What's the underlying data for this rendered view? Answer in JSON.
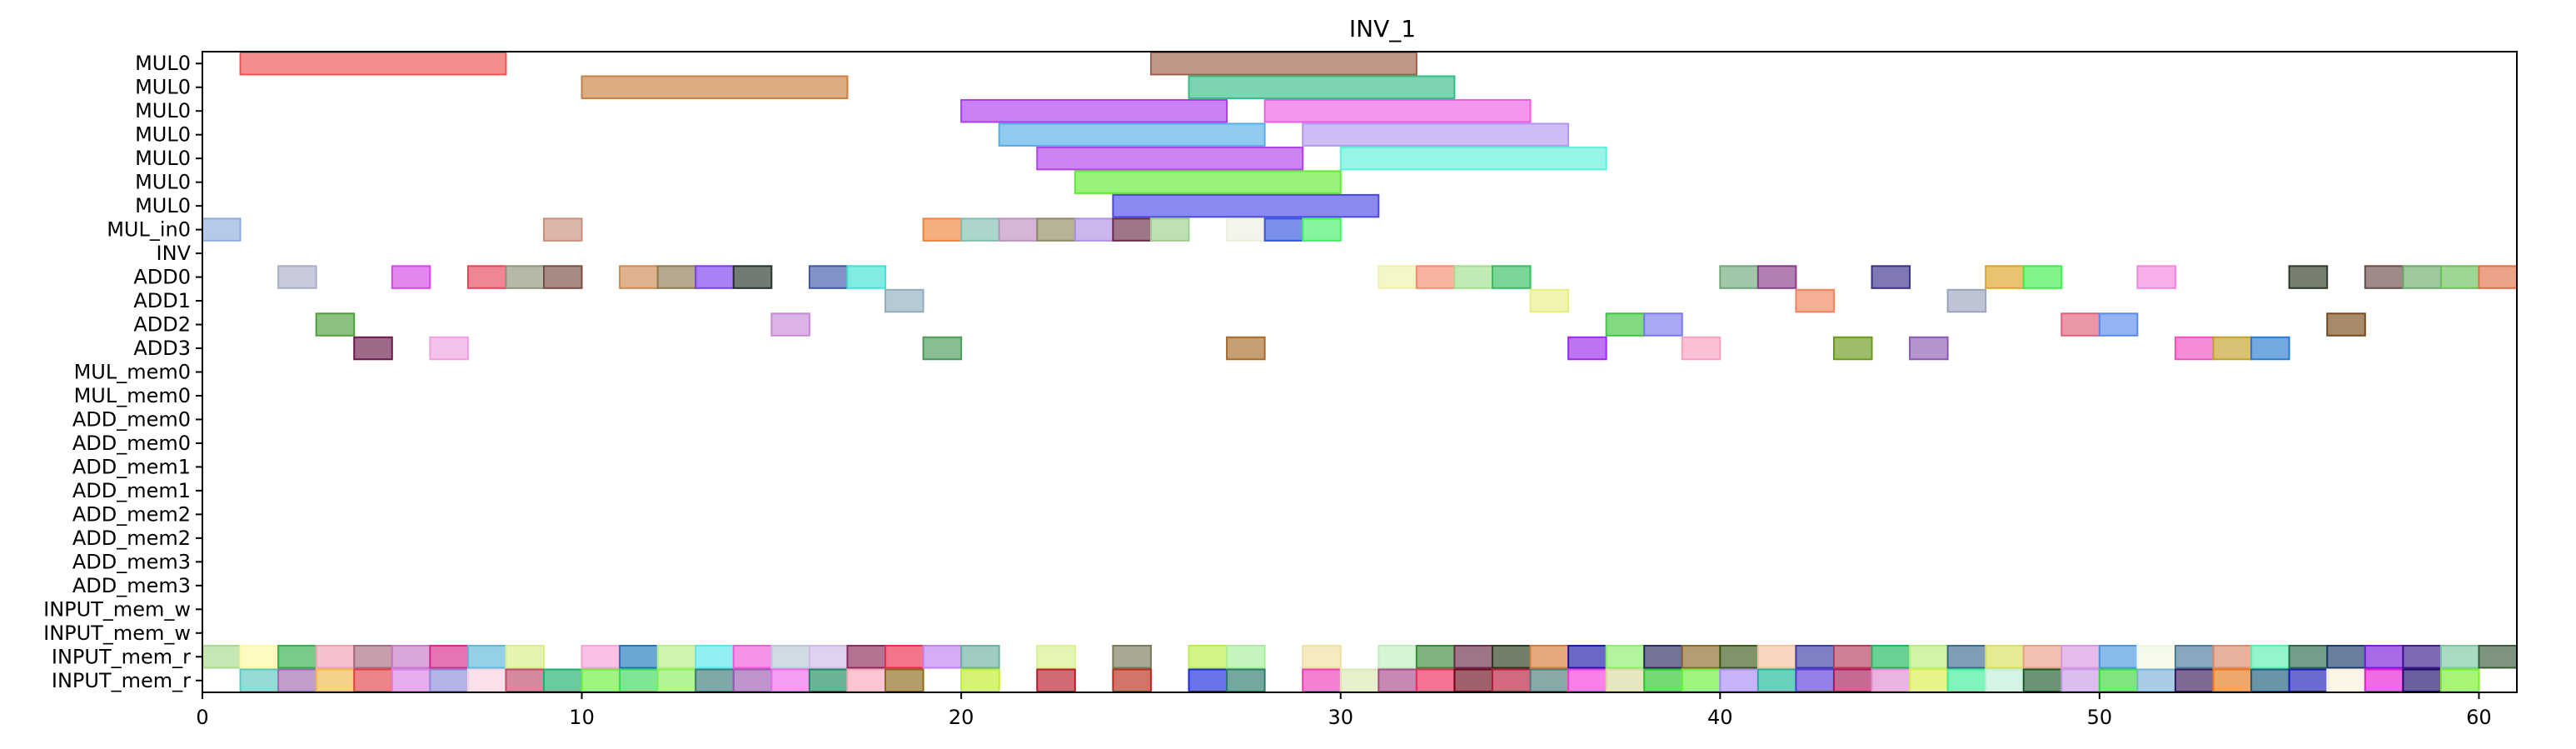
{
  "chart_data": {
    "type": "gantt",
    "title": "INV_1",
    "xlabel": "",
    "ylabel": "",
    "xlim": [
      0,
      61
    ],
    "x_ticks": [
      0,
      10,
      20,
      30,
      40,
      50,
      60
    ],
    "rows": [
      "MUL0",
      "MUL0",
      "MUL0",
      "MUL0",
      "MUL0",
      "MUL0",
      "MUL0",
      "MUL_in0",
      "INV",
      "ADD0",
      "ADD1",
      "ADD2",
      "ADD3",
      "MUL_mem0",
      "MUL_mem0",
      "ADD_mem0",
      "ADD_mem0",
      "ADD_mem1",
      "ADD_mem1",
      "ADD_mem2",
      "ADD_mem2",
      "ADD_mem3",
      "ADD_mem3",
      "INPUT_mem_w",
      "INPUT_mem_w",
      "INPUT_mem_r",
      "INPUT_mem_r"
    ],
    "tasks": [
      {
        "row": 0,
        "start": 1,
        "end": 8,
        "color": "#ec5151"
      },
      {
        "row": 0,
        "start": 25,
        "end": 32,
        "color": "#a0604b"
      },
      {
        "row": 1,
        "start": 10,
        "end": 17,
        "color": "#c9813f"
      },
      {
        "row": 1,
        "start": 26,
        "end": 33,
        "color": "#35bd88"
      },
      {
        "row": 2,
        "start": 20,
        "end": 27,
        "color": "#ad3ded"
      },
      {
        "row": 2,
        "start": 28,
        "end": 35,
        "color": "#ec5de2"
      },
      {
        "row": 3,
        "start": 21,
        "end": 28,
        "color": "#55aee5"
      },
      {
        "row": 3,
        "start": 29,
        "end": 36,
        "color": "#b498ef"
      },
      {
        "row": 4,
        "start": 22,
        "end": 29,
        "color": "#b142e8"
      },
      {
        "row": 4,
        "start": 30,
        "end": 37,
        "color": "#5ff0d9"
      },
      {
        "row": 5,
        "start": 23,
        "end": 30,
        "color": "#62eb33"
      },
      {
        "row": 6,
        "start": 24,
        "end": 31,
        "color": "#4a4ae6"
      },
      {
        "row": 7,
        "start": 0,
        "end": 1,
        "color": "#8eaedd"
      },
      {
        "row": 7,
        "start": 9,
        "end": 10,
        "color": "#c98f7c"
      },
      {
        "row": 7,
        "start": 19,
        "end": 20,
        "color": "#f0843b"
      },
      {
        "row": 7,
        "start": 20,
        "end": 21,
        "color": "#7fbfb0"
      },
      {
        "row": 7,
        "start": 21,
        "end": 22,
        "color": "#bf8fc0"
      },
      {
        "row": 7,
        "start": 22,
        "end": 23,
        "color": "#8f8a60"
      },
      {
        "row": 7,
        "start": 23,
        "end": 24,
        "color": "#b08fe3"
      },
      {
        "row": 7,
        "start": 24,
        "end": 25,
        "color": "#6b2a4a"
      },
      {
        "row": 7,
        "start": 25,
        "end": 26,
        "color": "#9fce8e"
      },
      {
        "row": 7,
        "start": 27,
        "end": 28,
        "color": "#eeeede"
      },
      {
        "row": 7,
        "start": 28,
        "end": 29,
        "color": "#3355dd"
      },
      {
        "row": 7,
        "start": 29,
        "end": 30,
        "color": "#44ee66"
      },
      {
        "row": 9,
        "start": 2,
        "end": 3,
        "color": "#a8adc8"
      },
      {
        "row": 9,
        "start": 5,
        "end": 6,
        "color": "#d545e8"
      },
      {
        "row": 9,
        "start": 7,
        "end": 8,
        "color": "#e8435a"
      },
      {
        "row": 9,
        "start": 8,
        "end": 9,
        "color": "#8e9478"
      },
      {
        "row": 9,
        "start": 9,
        "end": 10,
        "color": "#7a4c42"
      },
      {
        "row": 9,
        "start": 11,
        "end": 12,
        "color": "#cc8a52"
      },
      {
        "row": 9,
        "start": 12,
        "end": 13,
        "color": "#8f7a52"
      },
      {
        "row": 9,
        "start": 13,
        "end": 14,
        "color": "#7a3ef0"
      },
      {
        "row": 9,
        "start": 14,
        "end": 15,
        "color": "#27322a"
      },
      {
        "row": 9,
        "start": 16,
        "end": 17,
        "color": "#4058a8"
      },
      {
        "row": 9,
        "start": 17,
        "end": 18,
        "color": "#3ee4d3"
      },
      {
        "row": 9,
        "start": 31,
        "end": 32,
        "color": "#f0f2aa"
      },
      {
        "row": 9,
        "start": 32,
        "end": 33,
        "color": "#f78a6f"
      },
      {
        "row": 9,
        "start": 33,
        "end": 34,
        "color": "#a0e08e"
      },
      {
        "row": 9,
        "start": 34,
        "end": 35,
        "color": "#35be62"
      },
      {
        "row": 9,
        "start": 40,
        "end": 41,
        "color": "#6fa87a"
      },
      {
        "row": 9,
        "start": 41,
        "end": 42,
        "color": "#8b3a8a"
      },
      {
        "row": 9,
        "start": 44,
        "end": 45,
        "color": "#3a2f8a"
      },
      {
        "row": 9,
        "start": 47,
        "end": 48,
        "color": "#dba527"
      },
      {
        "row": 9,
        "start": 48,
        "end": 49,
        "color": "#3fee4a"
      },
      {
        "row": 9,
        "start": 51,
        "end": 52,
        "color": "#f285e0"
      },
      {
        "row": 9,
        "start": 55,
        "end": 56,
        "color": "#2c3a24"
      },
      {
        "row": 9,
        "start": 57,
        "end": 58,
        "color": "#6a4c4a"
      },
      {
        "row": 9,
        "start": 58,
        "end": 59,
        "color": "#6aaa6a"
      },
      {
        "row": 9,
        "start": 59,
        "end": 60,
        "color": "#6ac05a"
      },
      {
        "row": 9,
        "start": 60,
        "end": 61,
        "color": "#e0704a"
      },
      {
        "row": 10,
        "start": 18,
        "end": 19,
        "color": "#8fadbe"
      },
      {
        "row": 10,
        "start": 35,
        "end": 36,
        "color": "#e8ee80"
      },
      {
        "row": 10,
        "start": 42,
        "end": 43,
        "color": "#f5825a"
      },
      {
        "row": 10,
        "start": 46,
        "end": 47,
        "color": "#9aa5bd"
      },
      {
        "row": 11,
        "start": 3,
        "end": 4,
        "color": "#4f9f3a"
      },
      {
        "row": 11,
        "start": 15,
        "end": 16,
        "color": "#c88ad8"
      },
      {
        "row": 11,
        "start": 37,
        "end": 38,
        "color": "#3ec63e"
      },
      {
        "row": 11,
        "start": 38,
        "end": 39,
        "color": "#7a7aee"
      },
      {
        "row": 11,
        "start": 49,
        "end": 50,
        "color": "#e0607a"
      },
      {
        "row": 11,
        "start": 50,
        "end": 51,
        "color": "#5a8aee"
      },
      {
        "row": 11,
        "start": 56,
        "end": 57,
        "color": "#7a4a1a"
      },
      {
        "row": 12,
        "start": 4,
        "end": 5,
        "color": "#6a1a4a"
      },
      {
        "row": 12,
        "start": 6,
        "end": 7,
        "color": "#eea0e0"
      },
      {
        "row": 12,
        "start": 19,
        "end": 20,
        "color": "#4a9a5a"
      },
      {
        "row": 12,
        "start": 27,
        "end": 28,
        "color": "#a86a2a"
      },
      {
        "row": 12,
        "start": 36,
        "end": 37,
        "color": "#9a2aee"
      },
      {
        "row": 12,
        "start": 39,
        "end": 40,
        "color": "#f8a0c0"
      },
      {
        "row": 12,
        "start": 43,
        "end": 44,
        "color": "#6a9a1a"
      },
      {
        "row": 12,
        "start": 45,
        "end": 46,
        "color": "#8a5ab0"
      },
      {
        "row": 12,
        "start": 52,
        "end": 53,
        "color": "#f050c0"
      },
      {
        "row": 12,
        "start": 53,
        "end": 54,
        "color": "#c0a02a"
      },
      {
        "row": 12,
        "start": 54,
        "end": 55,
        "color": "#2a7ad0"
      },
      {
        "row": 25,
        "start": 0,
        "end": 1,
        "color": "#a8d88a"
      },
      {
        "row": 25,
        "start": 1,
        "end": 2,
        "color": "#fff8a0"
      },
      {
        "row": 25,
        "start": 2,
        "end": 3,
        "color": "#2eb04a"
      },
      {
        "row": 25,
        "start": 3,
        "end": 4,
        "color": "#f0a0b0"
      },
      {
        "row": 25,
        "start": 4,
        "end": 5,
        "color": "#a86a80"
      },
      {
        "row": 25,
        "start": 5,
        "end": 6,
        "color": "#c878c8"
      },
      {
        "row": 25,
        "start": 6,
        "end": 7,
        "color": "#d82a8a"
      },
      {
        "row": 25,
        "start": 7,
        "end": 8,
        "color": "#5ab8d8"
      },
      {
        "row": 25,
        "start": 8,
        "end": 9,
        "color": "#d8ee88"
      },
      {
        "row": 25,
        "start": 10,
        "end": 11,
        "color": "#f8a0d8"
      },
      {
        "row": 25,
        "start": 11,
        "end": 12,
        "color": "#1a78b8"
      },
      {
        "row": 25,
        "start": 12,
        "end": 13,
        "color": "#b8ee8a"
      },
      {
        "row": 25,
        "start": 13,
        "end": 14,
        "color": "#5ae8e8"
      },
      {
        "row": 25,
        "start": 14,
        "end": 15,
        "color": "#f05ad8"
      },
      {
        "row": 25,
        "start": 15,
        "end": 16,
        "color": "#b8c8d8"
      },
      {
        "row": 25,
        "start": 16,
        "end": 17,
        "color": "#d0b8e8"
      },
      {
        "row": 25,
        "start": 17,
        "end": 18,
        "color": "#8a2a5a"
      },
      {
        "row": 25,
        "start": 18,
        "end": 19,
        "color": "#ee2a4a"
      },
      {
        "row": 25,
        "start": 19,
        "end": 20,
        "color": "#c080f0"
      },
      {
        "row": 25,
        "start": 20,
        "end": 21,
        "color": "#6ab0a0"
      },
      {
        "row": 25,
        "start": 22,
        "end": 23,
        "color": "#d8f08a"
      },
      {
        "row": 25,
        "start": 24,
        "end": 25,
        "color": "#7a7a5a"
      },
      {
        "row": 25,
        "start": 26,
        "end": 27,
        "color": "#b8ee4a"
      },
      {
        "row": 25,
        "start": 27,
        "end": 28,
        "color": "#a8ee9a"
      },
      {
        "row": 25,
        "start": 29,
        "end": 30,
        "color": "#eee0a0"
      },
      {
        "row": 25,
        "start": 31,
        "end": 32,
        "color": "#c0eec0"
      },
      {
        "row": 25,
        "start": 32,
        "end": 33,
        "color": "#3a8a3a"
      },
      {
        "row": 25,
        "start": 33,
        "end": 34,
        "color": "#6a2a4a"
      },
      {
        "row": 25,
        "start": 34,
        "end": 35,
        "color": "#2a3a1a"
      },
      {
        "row": 25,
        "start": 35,
        "end": 36,
        "color": "#d87a3a"
      },
      {
        "row": 25,
        "start": 36,
        "end": 37,
        "color": "#1a1aa8"
      },
      {
        "row": 25,
        "start": 37,
        "end": 38,
        "color": "#8aee6a"
      },
      {
        "row": 25,
        "start": 38,
        "end": 39,
        "color": "#2a2a5a"
      },
      {
        "row": 25,
        "start": 39,
        "end": 40,
        "color": "#8a6a2a"
      },
      {
        "row": 25,
        "start": 40,
        "end": 41,
        "color": "#3a5a1a"
      },
      {
        "row": 25,
        "start": 41,
        "end": 42,
        "color": "#f8c0a0"
      },
      {
        "row": 25,
        "start": 42,
        "end": 43,
        "color": "#3a3aa8"
      },
      {
        "row": 25,
        "start": 43,
        "end": 44,
        "color": "#b83a5a"
      },
      {
        "row": 25,
        "start": 44,
        "end": 45,
        "color": "#1ab85a"
      },
      {
        "row": 25,
        "start": 45,
        "end": 46,
        "color": "#b8ee7a"
      },
      {
        "row": 25,
        "start": 46,
        "end": 47,
        "color": "#3a6a8a"
      },
      {
        "row": 25,
        "start": 47,
        "end": 48,
        "color": "#d8e05a"
      },
      {
        "row": 25,
        "start": 48,
        "end": 49,
        "color": "#e8a08a"
      },
      {
        "row": 25,
        "start": 49,
        "end": 50,
        "color": "#d898e0"
      },
      {
        "row": 25,
        "start": 50,
        "end": 51,
        "color": "#4a98e0"
      },
      {
        "row": 25,
        "start": 51,
        "end": 52,
        "color": "#f0f8e0"
      },
      {
        "row": 25,
        "start": 52,
        "end": 53,
        "color": "#4a7a9a"
      },
      {
        "row": 25,
        "start": 53,
        "end": 54,
        "color": "#d88a6a"
      },
      {
        "row": 25,
        "start": 54,
        "end": 55,
        "color": "#5af0b0"
      },
      {
        "row": 25,
        "start": 55,
        "end": 56,
        "color": "#2a6a4a"
      },
      {
        "row": 25,
        "start": 56,
        "end": 57,
        "color": "#1a3a6a"
      },
      {
        "row": 25,
        "start": 57,
        "end": 58,
        "color": "#7a1ad8"
      },
      {
        "row": 25,
        "start": 58,
        "end": 59,
        "color": "#3a1a8a"
      },
      {
        "row": 25,
        "start": 59,
        "end": 60,
        "color": "#7ac8a0"
      },
      {
        "row": 25,
        "start": 60,
        "end": 61,
        "color": "#3a5a3a"
      },
      {
        "row": 26,
        "start": 0,
        "end": 1,
        "color": "#ffffff"
      },
      {
        "row": 26,
        "start": 1,
        "end": 2,
        "color": "#5ac8c0"
      },
      {
        "row": 26,
        "start": 2,
        "end": 3,
        "color": "#a06ab0"
      },
      {
        "row": 26,
        "start": 3,
        "end": 4,
        "color": "#eeb84a"
      },
      {
        "row": 26,
        "start": 4,
        "end": 5,
        "color": "#e0404a"
      },
      {
        "row": 26,
        "start": 5,
        "end": 6,
        "color": "#d880e8"
      },
      {
        "row": 26,
        "start": 6,
        "end": 7,
        "color": "#8a8ad8"
      },
      {
        "row": 26,
        "start": 7,
        "end": 8,
        "color": "#f8d0e0"
      },
      {
        "row": 26,
        "start": 8,
        "end": 9,
        "color": "#c04a6a"
      },
      {
        "row": 26,
        "start": 9,
        "end": 10,
        "color": "#1ab06a"
      },
      {
        "row": 26,
        "start": 10,
        "end": 11,
        "color": "#6aee3a"
      },
      {
        "row": 26,
        "start": 11,
        "end": 12,
        "color": "#3ad85a"
      },
      {
        "row": 26,
        "start": 12,
        "end": 13,
        "color": "#8aee5a"
      },
      {
        "row": 26,
        "start": 13,
        "end": 14,
        "color": "#3a7a7a"
      },
      {
        "row": 26,
        "start": 14,
        "end": 15,
        "color": "#9a5ab0"
      },
      {
        "row": 26,
        "start": 15,
        "end": 16,
        "color": "#f068e8"
      },
      {
        "row": 26,
        "start": 16,
        "end": 17,
        "color": "#1a8a5a"
      },
      {
        "row": 26,
        "start": 17,
        "end": 18,
        "color": "#f8a8b8"
      },
      {
        "row": 26,
        "start": 18,
        "end": 19,
        "color": "#8a6a1a"
      },
      {
        "row": 26,
        "start": 20,
        "end": 21,
        "color": "#c0ee2a"
      },
      {
        "row": 26,
        "start": 22,
        "end": 23,
        "color": "#b81a2a"
      },
      {
        "row": 26,
        "start": 24,
        "end": 25,
        "color": "#b82a1a"
      },
      {
        "row": 26,
        "start": 26,
        "end": 27,
        "color": "#1a2ad8"
      },
      {
        "row": 26,
        "start": 27,
        "end": 28,
        "color": "#2a7a6a"
      },
      {
        "row": 26,
        "start": 29,
        "end": 30,
        "color": "#f03ab8"
      },
      {
        "row": 26,
        "start": 30,
        "end": 31,
        "color": "#d8e8b0"
      },
      {
        "row": 26,
        "start": 31,
        "end": 32,
        "color": "#a84a8a"
      },
      {
        "row": 26,
        "start": 32,
        "end": 33,
        "color": "#ee2a5a"
      },
      {
        "row": 26,
        "start": 33,
        "end": 34,
        "color": "#6a0a1a"
      },
      {
        "row": 26,
        "start": 34,
        "end": 35,
        "color": "#b81a3a"
      },
      {
        "row": 26,
        "start": 35,
        "end": 36,
        "color": "#4a7a7a"
      },
      {
        "row": 26,
        "start": 36,
        "end": 37,
        "color": "#f83ad8"
      },
      {
        "row": 26,
        "start": 37,
        "end": 38,
        "color": "#d8d8a0"
      },
      {
        "row": 26,
        "start": 38,
        "end": 39,
        "color": "#2ac82a"
      },
      {
        "row": 26,
        "start": 39,
        "end": 40,
        "color": "#6aee3a"
      },
      {
        "row": 26,
        "start": 40,
        "end": 41,
        "color": "#a88af8"
      },
      {
        "row": 26,
        "start": 41,
        "end": 42,
        "color": "#1ab89a"
      },
      {
        "row": 26,
        "start": 42,
        "end": 43,
        "color": "#5a3ad8"
      },
      {
        "row": 26,
        "start": 43,
        "end": 44,
        "color": "#a81a5a"
      },
      {
        "row": 26,
        "start": 44,
        "end": 45,
        "color": "#e08ad0"
      },
      {
        "row": 26,
        "start": 45,
        "end": 46,
        "color": "#d8ee4a"
      },
      {
        "row": 26,
        "start": 46,
        "end": 47,
        "color": "#3aee9a"
      },
      {
        "row": 26,
        "start": 47,
        "end": 48,
        "color": "#c0eed8"
      },
      {
        "row": 26,
        "start": 48,
        "end": 49,
        "color": "#1a5a2a"
      },
      {
        "row": 26,
        "start": 49,
        "end": 50,
        "color": "#c89ae8"
      },
      {
        "row": 26,
        "start": 50,
        "end": 51,
        "color": "#3ad83a"
      },
      {
        "row": 26,
        "start": 51,
        "end": 52,
        "color": "#7ab0d8"
      },
      {
        "row": 26,
        "start": 52,
        "end": 53,
        "color": "#3a1a5a"
      },
      {
        "row": 26,
        "start": 53,
        "end": 54,
        "color": "#e8781a"
      },
      {
        "row": 26,
        "start": 54,
        "end": 55,
        "color": "#1a5a7a"
      },
      {
        "row": 26,
        "start": 55,
        "end": 56,
        "color": "#1a1ab8"
      },
      {
        "row": 26,
        "start": 56,
        "end": 57,
        "color": "#f8f0d8"
      },
      {
        "row": 26,
        "start": 57,
        "end": 58,
        "color": "#e81ad8"
      },
      {
        "row": 26,
        "start": 58,
        "end": 59,
        "color": "#1a0a6a"
      },
      {
        "row": 26,
        "start": 59,
        "end": 60,
        "color": "#7aee2a"
      }
    ]
  }
}
